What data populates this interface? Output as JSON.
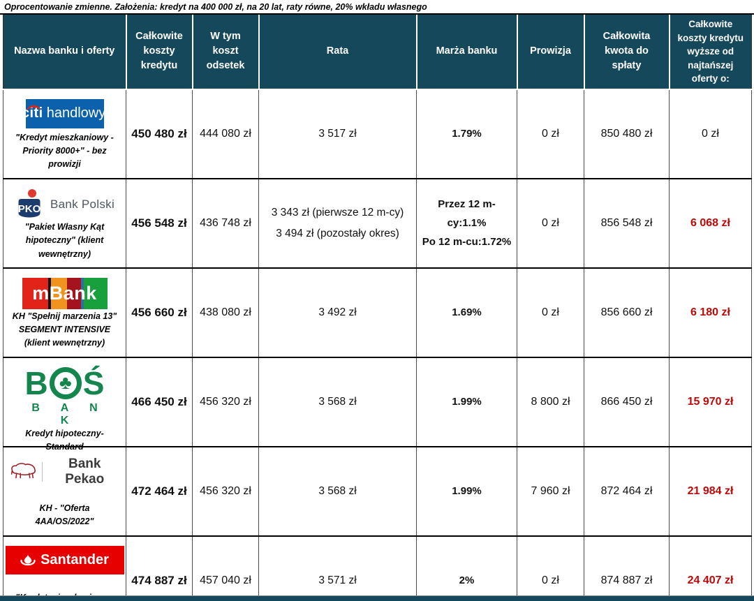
{
  "note": "Oprocentowanie zmienne. Założenia: kredyt na 400 000 zł, na 20 lat, raty równe, 20% wkładu własnego",
  "colors": {
    "header_bg": "#16485c",
    "diff_red": "#c00808",
    "citi_blue": "#0b61ab",
    "santander_red": "#e60000",
    "bos_green": "#13854d",
    "pekao_red": "#9d1b21",
    "pko_navy": "#1d3c6e"
  },
  "table": {
    "headers": [
      "Nazwa banku i oferty",
      "Całkowite koszty kredytu",
      "W tym koszt odsetek",
      "Rata",
      "Marża banku",
      "Prowizja",
      "Całkowita kwota do spłaty",
      "Całkowite koszty kredytu wyższe od najtańszej oferty o:"
    ],
    "rows": [
      {
        "bank": "Citi Handlowy",
        "logo": "citi",
        "logo_text": [
          "citi",
          "handlowy",
          "'"
        ],
        "offer": "\"Kredyt mieszkaniowy - Priority 8000+\" - bez prowizji",
        "koszty": "450 480 zł",
        "odsetki": "444 080 zł",
        "rata": [
          "3 517 zł"
        ],
        "marza": [
          "1.79%"
        ],
        "prowizja": "0 zł",
        "kwota": "850 480 zł",
        "diff": "0 zł",
        "diff_red": false
      },
      {
        "bank": "PKO Bank Polski",
        "logo": "pko",
        "logo_text": [
          "Bank Polski",
          "PKO"
        ],
        "offer": "\"Pakiet Własny Kąt hipoteczny\" (klient wewnętrzny)",
        "koszty": "456 548 zł",
        "odsetki": "436 748 zł",
        "rata": [
          "3 343 zł (pierwsze 12 m-cy)",
          "3 494 zł (pozostały okres)"
        ],
        "marza": [
          "Przez 12 m-cy:1.1%",
          "Po 12 m-cu:1.72%"
        ],
        "prowizja": "0 zł",
        "kwota": "856 548 zł",
        "diff": "6 068 zł",
        "diff_red": true
      },
      {
        "bank": "mBank",
        "logo": "mbank",
        "logo_text": [
          "mBank"
        ],
        "offer": "KH \"Spełnij marzenia 13\" SEGMENT INTENSIVE (klient wewnętrzny)",
        "koszty": "456 660 zł",
        "odsetki": "438 080 zł",
        "rata": [
          "3 492 zł"
        ],
        "marza": [
          "1.69%"
        ],
        "prowizja": "0 zł",
        "kwota": "856 660 zł",
        "diff": "6 180 zł",
        "diff_red": true
      },
      {
        "bank": "BOŚ Bank",
        "logo": "bos",
        "logo_text": [
          "B",
          "Ś",
          "B A N K"
        ],
        "offer": "Kredyt hipoteczny- Standard",
        "koszty": "466 450 zł",
        "odsetki": "456 320 zł",
        "rata": [
          "3 568 zł"
        ],
        "marza": [
          "1.99%"
        ],
        "prowizja": "8 800 zł",
        "kwota": "866 450 zł",
        "diff": "15 970 zł",
        "diff_red": true
      },
      {
        "bank": "Bank Pekao",
        "logo": "pekao",
        "logo_text": [
          "Bank Pekao"
        ],
        "offer": "KH - \"Oferta 4AA/OS/2022\"",
        "koszty": "472 464 zł",
        "odsetki": "456 320 zł",
        "rata": [
          "3 568 zł"
        ],
        "marza": [
          "1.99%"
        ],
        "prowizja": "7 960 zł",
        "kwota": "872 464 zł",
        "diff": "21 984 zł",
        "diff_red": true
      },
      {
        "bank": "Santander",
        "logo": "santander",
        "logo_text": [
          "Santander"
        ],
        "offer": "\"Kredyt mieszkaniowy - Select, klient wewnętrzny\"",
        "koszty": "474 887 zł",
        "odsetki": "457 040 zł",
        "rata": [
          "3 571 zł"
        ],
        "marza": [
          "2%"
        ],
        "prowizja": "0 zł",
        "kwota": "874 887 zł",
        "diff": "24 407 zł",
        "diff_red": true
      }
    ]
  }
}
